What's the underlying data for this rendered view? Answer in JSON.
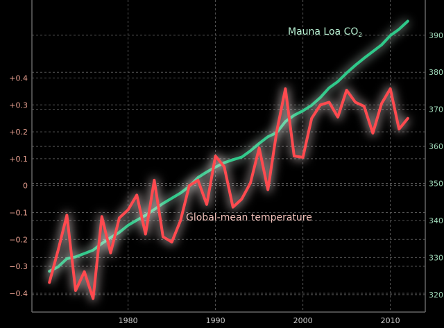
{
  "chart_data": {
    "type": "line",
    "title": "",
    "x": [
      1971,
      1972,
      1973,
      1974,
      1975,
      1976,
      1977,
      1978,
      1979,
      1980,
      1981,
      1982,
      1983,
      1984,
      1985,
      1986,
      1987,
      1988,
      1989,
      1990,
      1991,
      1992,
      1993,
      1994,
      1995,
      1996,
      1997,
      1998,
      1999,
      2000,
      2001,
      2002,
      2003,
      2004,
      2005,
      2006,
      2007,
      2008,
      2009,
      2010,
      2011,
      2012
    ],
    "xlim": [
      1969,
      2014
    ],
    "xticks": [
      "1980",
      "1990",
      "2000",
      "2010"
    ],
    "grid": true,
    "series": [
      {
        "name": "Mauna Loa CO₂",
        "axis": "right",
        "color": "#2fc98a",
        "values": [
          326.3,
          327.5,
          329.7,
          330.2,
          331.1,
          332.0,
          333.8,
          335.4,
          336.8,
          338.7,
          340.1,
          341.4,
          343.0,
          344.6,
          346.0,
          347.4,
          349.2,
          351.6,
          353.1,
          354.4,
          355.6,
          356.4,
          357.1,
          358.8,
          360.8,
          362.6,
          363.7,
          366.7,
          368.4,
          369.6,
          371.1,
          373.2,
          375.8,
          377.5,
          379.8,
          381.9,
          383.8,
          385.6,
          387.4,
          389.9,
          391.6,
          393.8
        ]
      },
      {
        "name": "Global-mean temperature",
        "axis": "left",
        "color": "#ff4a4f",
        "values": [
          -0.36,
          -0.24,
          -0.11,
          -0.39,
          -0.32,
          -0.42,
          -0.115,
          -0.25,
          -0.12,
          -0.09,
          -0.035,
          -0.18,
          0.02,
          -0.19,
          -0.21,
          -0.13,
          0.0,
          0.02,
          -0.07,
          0.11,
          0.07,
          -0.08,
          -0.05,
          0.01,
          0.14,
          -0.015,
          0.2,
          0.36,
          0.11,
          0.105,
          0.25,
          0.3,
          0.31,
          0.255,
          0.355,
          0.31,
          0.295,
          0.195,
          0.305,
          0.36,
          0.21,
          0.25
        ]
      }
    ],
    "left_axis": {
      "ylim": [
        -0.47,
        0.69
      ],
      "ticks": [
        "+0.4",
        "+0.3",
        "+0.2",
        "+0.1",
        "0",
        "−0.1",
        "−0.2",
        "−0.3",
        "−0.4"
      ],
      "tick_values": [
        0.4,
        0.3,
        0.2,
        0.1,
        0,
        -0.1,
        -0.2,
        -0.3,
        -0.4
      ],
      "color": "#e8a090"
    },
    "right_axis": {
      "ylim": [
        315.3,
        399.5
      ],
      "ticks": [
        "390",
        "380",
        "370",
        "360",
        "350",
        "340",
        "330",
        "320"
      ],
      "tick_values": [
        390,
        380,
        370,
        360,
        350,
        340,
        330,
        320
      ],
      "color": "#9fd8b8"
    },
    "annotations": {
      "co2_label": "Mauna Loa CO",
      "co2_sub": "2",
      "temp_label": "Global-mean temperature"
    }
  }
}
